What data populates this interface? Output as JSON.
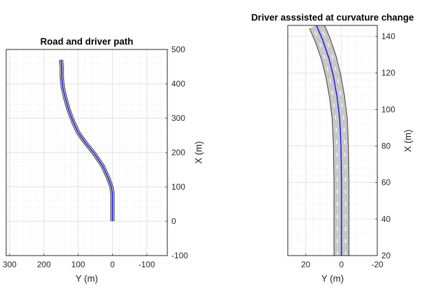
{
  "chart_data": [
    {
      "type": "line",
      "title": "Road and driver path",
      "xlabel": "Y (m)",
      "ylabel": "X (m)",
      "xlim": [
        -160,
        310
      ],
      "ylim": [
        -100,
        500
      ],
      "x_reversed": true,
      "y_axis_location": "right",
      "grid": true,
      "minor_grid": true,
      "xticks": [
        300,
        200,
        100,
        0,
        -100
      ],
      "yticks": [
        -100,
        0,
        100,
        200,
        300,
        400,
        500
      ],
      "road_width_m": 8,
      "road_color": "#c8c8c8",
      "path_color": "#0000ff",
      "series": [
        {
          "x": [
            0,
            0,
            0,
            0,
            3,
            12,
            28,
            52,
            80,
            100,
            115,
            128,
            138,
            145,
            148,
            148,
            150
          ],
          "y": [
            0,
            20,
            50,
            80,
            100,
            125,
            160,
            195,
            230,
            258,
            290,
            325,
            360,
            390,
            420,
            450,
            470
          ]
        }
      ]
    },
    {
      "type": "line",
      "title": "Driver asssisted at curvature change",
      "xlabel": "Y (m)",
      "ylabel": "X (m)",
      "xlim": [
        -20,
        30
      ],
      "ylim": [
        20,
        146
      ],
      "x_reversed": true,
      "y_axis_location": "right",
      "grid": true,
      "minor_grid": true,
      "xticks": [
        20,
        0,
        -20
      ],
      "yticks": [
        20,
        40,
        60,
        80,
        100,
        120,
        140
      ],
      "road_width_m": 8,
      "road_color": "#c8c8c8",
      "path_color": "#0000ff",
      "lane_marking_color": "#ffffff",
      "series": [
        {
          "x": [
            0,
            0,
            0,
            0.3,
            1,
            2.5,
            4.5,
            7,
            10.5,
            14
          ],
          "y": [
            20,
            40,
            60,
            80,
            95,
            107,
            118,
            128,
            138,
            146
          ]
        }
      ]
    }
  ]
}
